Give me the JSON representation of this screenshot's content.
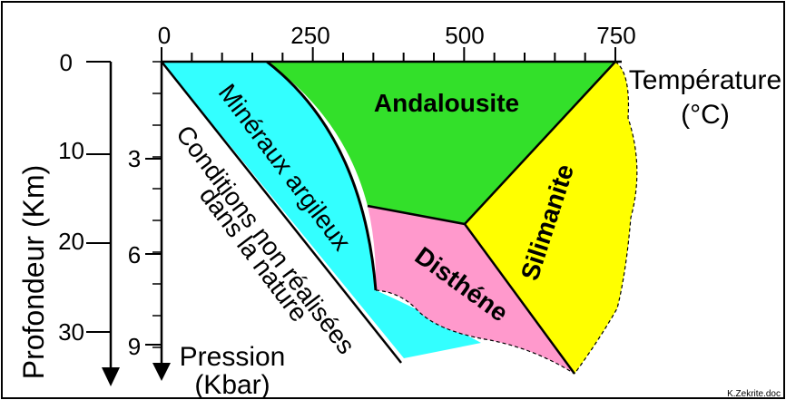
{
  "temperature_axis": {
    "label_line1": "Température",
    "label_line2": "(°C)",
    "ticks": [
      "0",
      "250",
      "500",
      "750"
    ]
  },
  "depth_axis": {
    "label": "Profondeur (Km)",
    "ticks": [
      "0",
      "10",
      "20",
      "30"
    ]
  },
  "pressure_axis": {
    "label_line1": "Pression",
    "label_line2": "(Kbar)",
    "ticks": [
      "3",
      "6",
      "9"
    ]
  },
  "zones": {
    "andalousite": "Andalousite",
    "silimanite": "Silimanite",
    "disthene": "Disthéne",
    "mineraux_argileux": "Minéraux argileux",
    "conditions_line1": "Conditions non réalisées",
    "conditions_line2": "dans la nature"
  },
  "colors": {
    "andalousite": "#33e02a",
    "silimanite": "#ffff00",
    "disthene": "#ff99cc",
    "mineraux_argileux": "#33ffff",
    "frame": "#000000"
  },
  "credit": "K.Zekrite.doc"
}
